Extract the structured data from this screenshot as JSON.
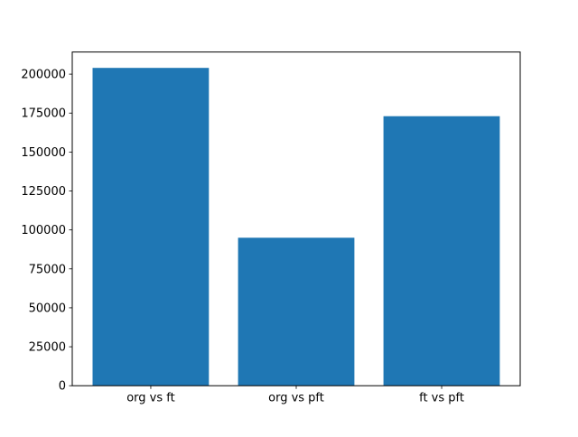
{
  "chart_data": {
    "type": "bar",
    "categories": [
      "org vs ft",
      "org vs pft",
      "ft vs pft"
    ],
    "values": [
      204000,
      95000,
      173000
    ],
    "title": "",
    "xlabel": "",
    "ylabel": "",
    "ylim": [
      0,
      214200
    ],
    "yticks": [
      0,
      25000,
      50000,
      75000,
      100000,
      125000,
      150000,
      175000,
      200000
    ],
    "bar_color": "#1f77b4",
    "axis_color": "#000000",
    "background_color": "#ffffff",
    "grid": false,
    "legend_position": "none"
  }
}
